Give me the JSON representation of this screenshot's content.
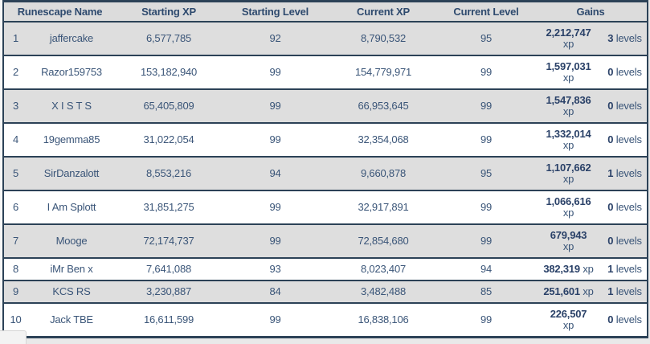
{
  "table": {
    "headers": [
      "Runescape Name",
      "Starting XP",
      "Starting Level",
      "Current XP",
      "Current Level",
      "Gains"
    ],
    "rows": [
      {
        "rank": "1",
        "name": "jaffercake",
        "starting_xp": "6,577,785",
        "starting_level": "92",
        "current_xp": "8,790,532",
        "current_level": "95",
        "gains_xp": "2,212,747",
        "gains_xp_unit": "xp",
        "gains_xp_wrap": true,
        "gains_levels_value": "3",
        "gains_levels_unit": "levels"
      },
      {
        "rank": "2",
        "name": "Razor159753",
        "starting_xp": "153,182,940",
        "starting_level": "99",
        "current_xp": "154,779,971",
        "current_level": "99",
        "gains_xp": "1,597,031",
        "gains_xp_unit": "xp",
        "gains_xp_wrap": true,
        "gains_levels_value": "0",
        "gains_levels_unit": "levels"
      },
      {
        "rank": "3",
        "name": "X I S T S",
        "starting_xp": "65,405,809",
        "starting_level": "99",
        "current_xp": "66,953,645",
        "current_level": "99",
        "gains_xp": "1,547,836",
        "gains_xp_unit": "xp",
        "gains_xp_wrap": true,
        "gains_levels_value": "0",
        "gains_levels_unit": "levels"
      },
      {
        "rank": "4",
        "name": "19gemma85",
        "starting_xp": "31,022,054",
        "starting_level": "99",
        "current_xp": "32,354,068",
        "current_level": "99",
        "gains_xp": "1,332,014",
        "gains_xp_unit": "xp",
        "gains_xp_wrap": true,
        "gains_levels_value": "0",
        "gains_levels_unit": "levels"
      },
      {
        "rank": "5",
        "name": "SirDanzalott",
        "starting_xp": "8,553,216",
        "starting_level": "94",
        "current_xp": "9,660,878",
        "current_level": "95",
        "gains_xp": "1,107,662",
        "gains_xp_unit": "xp",
        "gains_xp_wrap": true,
        "gains_levels_value": "1",
        "gains_levels_unit": "levels"
      },
      {
        "rank": "6",
        "name": "I Am Splott",
        "starting_xp": "31,851,275",
        "starting_level": "99",
        "current_xp": "32,917,891",
        "current_level": "99",
        "gains_xp": "1,066,616",
        "gains_xp_unit": "xp",
        "gains_xp_wrap": true,
        "gains_levels_value": "0",
        "gains_levels_unit": "levels"
      },
      {
        "rank": "7",
        "name": "Mooge",
        "starting_xp": "72,174,737",
        "starting_level": "99",
        "current_xp": "72,854,680",
        "current_level": "99",
        "gains_xp": "679,943",
        "gains_xp_unit": "xp",
        "gains_xp_wrap": true,
        "gains_levels_value": "0",
        "gains_levels_unit": "levels"
      },
      {
        "rank": "8",
        "name": "iMr Ben x",
        "starting_xp": "7,641,088",
        "starting_level": "93",
        "current_xp": "8,023,407",
        "current_level": "94",
        "gains_xp": "382,319",
        "gains_xp_unit": "xp",
        "gains_xp_wrap": false,
        "gains_levels_value": "1",
        "gains_levels_unit": "levels"
      },
      {
        "rank": "9",
        "name": "KCS RS",
        "starting_xp": "3,230,887",
        "starting_level": "84",
        "current_xp": "3,482,488",
        "current_level": "85",
        "gains_xp": "251,601",
        "gains_xp_unit": "xp",
        "gains_xp_wrap": false,
        "gains_levels_value": "1",
        "gains_levels_unit": "levels"
      },
      {
        "rank": "10",
        "name": "Jack TBE",
        "starting_xp": "16,611,599",
        "starting_level": "99",
        "current_xp": "16,838,106",
        "current_level": "99",
        "gains_xp": "226,507",
        "gains_xp_unit": "xp",
        "gains_xp_wrap": true,
        "gains_levels_value": "0",
        "gains_levels_unit": "levels"
      }
    ]
  }
}
